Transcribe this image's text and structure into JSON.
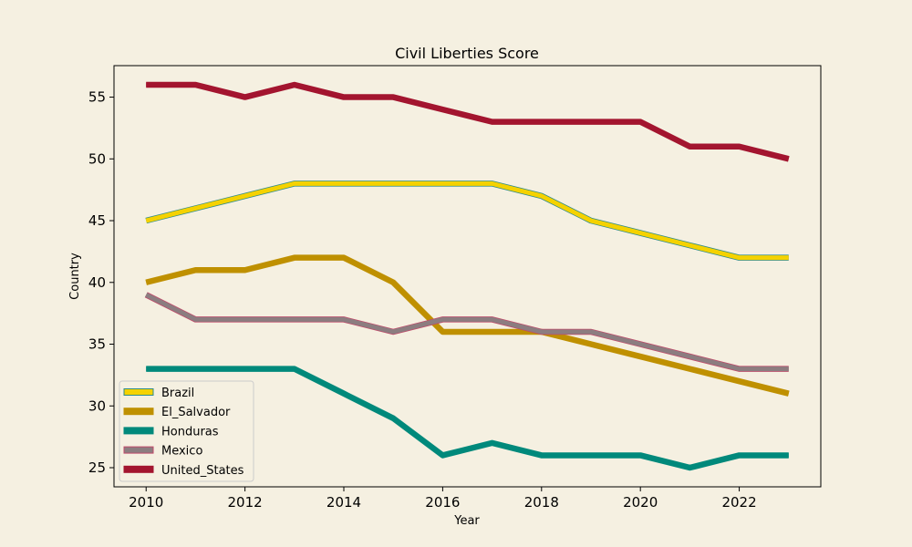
{
  "chart_data": {
    "type": "line",
    "title": "Civil Liberties Score",
    "xlabel": "Year",
    "ylabel": "Country",
    "x": [
      2010,
      2011,
      2012,
      2013,
      2014,
      2015,
      2016,
      2017,
      2018,
      2019,
      2020,
      2021,
      2022,
      2023
    ],
    "xlim": [
      2009.35,
      2023.65
    ],
    "ylim": [
      23.45,
      57.55
    ],
    "xticks": [
      2010,
      2012,
      2014,
      2016,
      2018,
      2020,
      2022
    ],
    "yticks": [
      25,
      30,
      35,
      40,
      45,
      50,
      55
    ],
    "grid": false,
    "legend_position": "lower-left",
    "background": "#f5f0e1",
    "series": [
      {
        "name": "Brazil",
        "color": "#f5d200",
        "edge": "#2e8b8b",
        "values": [
          45,
          46,
          47,
          48,
          48,
          48,
          48,
          48,
          47,
          45,
          44,
          43,
          42,
          42
        ]
      },
      {
        "name": "El_Salvador",
        "color": "#bf9000",
        "edge": "#bf9000",
        "values": [
          40,
          41,
          41,
          42,
          42,
          40,
          36,
          36,
          36,
          35,
          34,
          33,
          32,
          31
        ]
      },
      {
        "name": "Honduras",
        "color": "#00897b",
        "edge": "#00897b",
        "values": [
          33,
          33,
          33,
          33,
          31,
          29,
          26,
          27,
          26,
          26,
          26,
          25,
          26,
          26
        ]
      },
      {
        "name": "Mexico",
        "color": "#8c7d80",
        "edge": "#c04a6a",
        "values": [
          39,
          37,
          37,
          37,
          37,
          36,
          37,
          37,
          36,
          36,
          35,
          34,
          33,
          33
        ]
      },
      {
        "name": "United_States",
        "color": "#a3152f",
        "edge": "#a3152f",
        "values": [
          56,
          56,
          55,
          56,
          55,
          55,
          54,
          53,
          53,
          53,
          53,
          51,
          51,
          50
        ]
      }
    ]
  }
}
